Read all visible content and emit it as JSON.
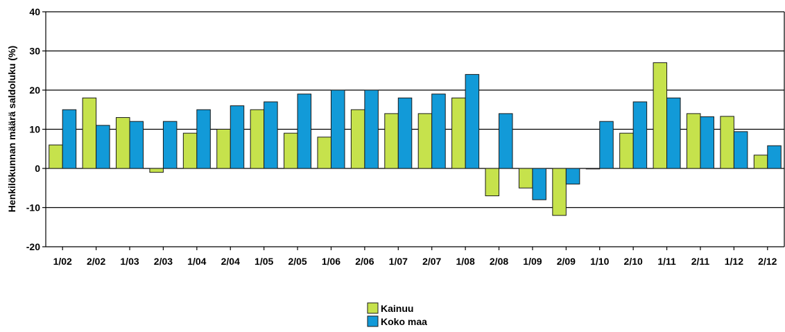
{
  "colors": {
    "kainuu": "#c6e24c",
    "koko_maa": "#129ad8",
    "gridline": "#000000",
    "bar_outline": "#1a1a1a"
  },
  "chart_data": {
    "type": "bar",
    "title": "",
    "xlabel": "",
    "ylabel": "Henkilökunnan määrä saldoluku (%)",
    "ylim": [
      -20,
      40
    ],
    "yticks": [
      -20,
      -10,
      0,
      10,
      20,
      30,
      40
    ],
    "grid": true,
    "legend_position": "bottom-center",
    "categories": [
      "1/02",
      "2/02",
      "1/03",
      "2/03",
      "1/04",
      "2/04",
      "1/05",
      "2/05",
      "1/06",
      "2/06",
      "1/07",
      "2/07",
      "1/08",
      "2/08",
      "1/09",
      "2/09",
      "1/10",
      "2/10",
      "1/11",
      "2/11",
      "1/12",
      "2/12"
    ],
    "series": [
      {
        "name": "Kainuu",
        "values": [
          6,
          18,
          13,
          -1,
          9,
          10,
          15,
          9,
          8,
          15,
          14,
          14,
          18,
          -7,
          -5,
          -12,
          0,
          9,
          27,
          14,
          13.3,
          3.4
        ]
      },
      {
        "name": "Koko maa",
        "values": [
          15,
          11,
          12,
          12,
          15,
          16,
          17,
          19,
          20,
          20,
          18,
          19,
          24,
          14,
          -8,
          -4,
          12,
          17,
          18,
          13.2,
          9.4,
          5.8
        ]
      }
    ]
  }
}
